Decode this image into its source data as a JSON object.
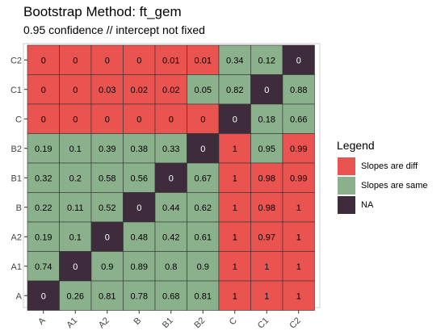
{
  "title": "Bootstrap Method: ft_gem",
  "subtitle": "0.95 confidence // intercept not fixed",
  "colors": {
    "diff": "#ea5450",
    "same": "#8bb18c",
    "na": "#3e2c3d"
  },
  "legend": {
    "title": "Legend",
    "items": [
      {
        "label": "Slopes are diff",
        "category": "diff"
      },
      {
        "label": "Slopes are same",
        "category": "same"
      },
      {
        "label": "NA",
        "category": "na"
      }
    ]
  },
  "chart_data": {
    "type": "heatmap",
    "x_categories": [
      "A",
      "A1",
      "A2",
      "B",
      "B1",
      "B2",
      "C",
      "C1",
      "C2"
    ],
    "y_categories": [
      "C2",
      "C1",
      "C",
      "B2",
      "B1",
      "B",
      "A2",
      "A1",
      "A"
    ],
    "values": [
      [
        "0",
        "0",
        "0",
        "0",
        "0.01",
        "0.01",
        "0.34",
        "0.12",
        "0"
      ],
      [
        "0",
        "0",
        "0.03",
        "0.02",
        "0.02",
        "0.05",
        "0.82",
        "0",
        "0.88"
      ],
      [
        "0",
        "0",
        "0",
        "0",
        "0",
        "0",
        "0",
        "0.18",
        "0.66"
      ],
      [
        "0.19",
        "0.1",
        "0.39",
        "0.38",
        "0.33",
        "0",
        "1",
        "0.95",
        "0.99"
      ],
      [
        "0.32",
        "0.2",
        "0.58",
        "0.56",
        "0",
        "0.67",
        "1",
        "0.98",
        "0.99"
      ],
      [
        "0.22",
        "0.11",
        "0.52",
        "0",
        "0.44",
        "0.62",
        "1",
        "0.98",
        "1"
      ],
      [
        "0.19",
        "0.1",
        "0",
        "0.48",
        "0.42",
        "0.61",
        "1",
        "0.97",
        "1"
      ],
      [
        "0.74",
        "0",
        "0.9",
        "0.89",
        "0.8",
        "0.9",
        "1",
        "1",
        "1"
      ],
      [
        "0",
        "0.26",
        "0.81",
        "0.78",
        "0.68",
        "0.81",
        "1",
        "1",
        "1"
      ]
    ],
    "fill": [
      [
        "diff",
        "diff",
        "diff",
        "diff",
        "diff",
        "diff",
        "same",
        "same",
        "na"
      ],
      [
        "diff",
        "diff",
        "diff",
        "diff",
        "diff",
        "same",
        "same",
        "na",
        "same"
      ],
      [
        "diff",
        "diff",
        "diff",
        "diff",
        "diff",
        "diff",
        "na",
        "same",
        "same"
      ],
      [
        "same",
        "same",
        "same",
        "same",
        "same",
        "na",
        "diff",
        "same",
        "diff"
      ],
      [
        "same",
        "same",
        "same",
        "same",
        "na",
        "same",
        "diff",
        "diff",
        "diff"
      ],
      [
        "same",
        "same",
        "same",
        "na",
        "same",
        "same",
        "diff",
        "diff",
        "diff"
      ],
      [
        "same",
        "same",
        "na",
        "same",
        "same",
        "same",
        "diff",
        "diff",
        "diff"
      ],
      [
        "same",
        "na",
        "same",
        "same",
        "same",
        "same",
        "diff",
        "diff",
        "diff"
      ],
      [
        "na",
        "same",
        "same",
        "same",
        "same",
        "same",
        "diff",
        "diff",
        "diff"
      ]
    ]
  }
}
